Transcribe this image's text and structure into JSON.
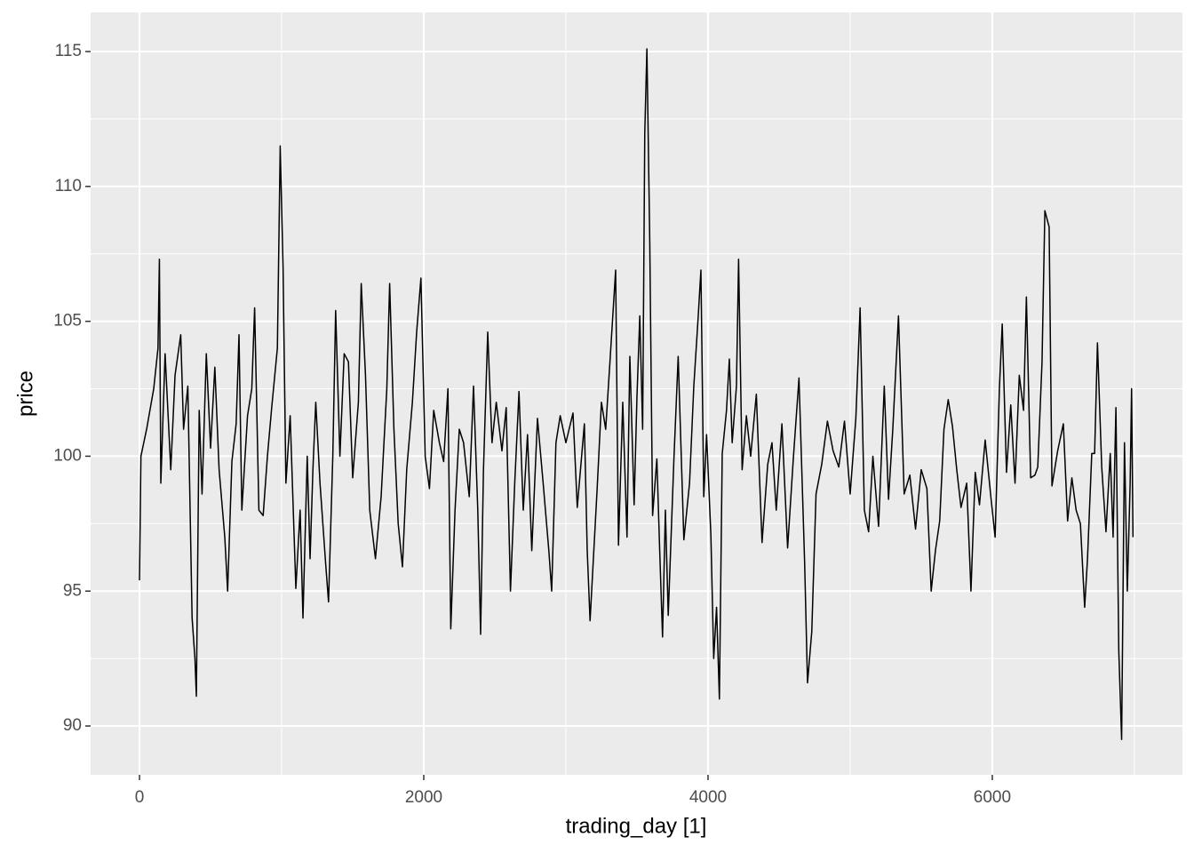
{
  "chart_data": {
    "type": "line",
    "x_label": "trading_day [1]",
    "y_label": "price",
    "xlim": [
      -344,
      7338
    ],
    "ylim": [
      88.19,
      116.45
    ],
    "xticks": [
      0,
      2000,
      4000,
      6000
    ],
    "yticks": [
      90,
      95,
      100,
      105,
      110,
      115
    ],
    "x_minor_grid": [
      1000,
      3000,
      5000,
      7000
    ],
    "y_minor_grid": [
      92.5,
      97.5,
      102.5,
      107.5,
      112.5
    ],
    "grid": true,
    "color": "#000000",
    "x": [
      0,
      10,
      50,
      100,
      130,
      140,
      150,
      180,
      220,
      250,
      290,
      310,
      340,
      370,
      390,
      400,
      420,
      440,
      470,
      500,
      530,
      560,
      600,
      620,
      650,
      680,
      700,
      720,
      760,
      790,
      810,
      840,
      870,
      900,
      930,
      970,
      990,
      1010,
      1030,
      1060,
      1100,
      1130,
      1150,
      1180,
      1200,
      1220,
      1240,
      1270,
      1310,
      1330,
      1360,
      1380,
      1410,
      1440,
      1470,
      1500,
      1540,
      1560,
      1590,
      1620,
      1660,
      1700,
      1740,
      1760,
      1790,
      1820,
      1850,
      1880,
      1920,
      1950,
      1980,
      2010,
      2040,
      2070,
      2110,
      2140,
      2170,
      2190,
      2220,
      2250,
      2280,
      2320,
      2350,
      2380,
      2400,
      2420,
      2450,
      2480,
      2510,
      2550,
      2580,
      2610,
      2640,
      2670,
      2700,
      2730,
      2760,
      2800,
      2840,
      2880,
      2900,
      2930,
      2960,
      3000,
      3050,
      3080,
      3130,
      3150,
      3170,
      3220,
      3250,
      3280,
      3310,
      3350,
      3370,
      3400,
      3430,
      3450,
      3480,
      3500,
      3520,
      3540,
      3555,
      3570,
      3590,
      3610,
      3640,
      3660,
      3680,
      3700,
      3720,
      3760,
      3790,
      3830,
      3870,
      3900,
      3930,
      3950,
      3970,
      3990,
      4020,
      4040,
      4060,
      4080,
      4100,
      4130,
      4150,
      4170,
      4200,
      4215,
      4240,
      4270,
      4300,
      4340,
      4380,
      4420,
      4450,
      4480,
      4520,
      4560,
      4600,
      4640,
      4680,
      4700,
      4730,
      4760,
      4800,
      4840,
      4880,
      4920,
      4960,
      5000,
      5040,
      5070,
      5100,
      5130,
      5160,
      5200,
      5240,
      5270,
      5300,
      5340,
      5380,
      5420,
      5460,
      5500,
      5540,
      5570,
      5600,
      5630,
      5660,
      5690,
      5720,
      5750,
      5780,
      5820,
      5850,
      5880,
      5910,
      5950,
      5990,
      6020,
      6050,
      6070,
      6100,
      6130,
      6160,
      6190,
      6220,
      6240,
      6270,
      6300,
      6320,
      6350,
      6370,
      6400,
      6420,
      6460,
      6500,
      6530,
      6560,
      6590,
      6620,
      6650,
      6670,
      6700,
      6720,
      6740,
      6770,
      6800,
      6830,
      6850,
      6870,
      6890,
      6910,
      6930,
      6950,
      6970,
      6980,
      6990
    ],
    "values": [
      95.4,
      100,
      101,
      102.5,
      104,
      107.3,
      99,
      103.8,
      99.5,
      103,
      104.5,
      101,
      102.6,
      94,
      92.5,
      91.1,
      101.7,
      98.6,
      103.8,
      100.3,
      103.3,
      99.5,
      97,
      95,
      99.8,
      101.2,
      104.5,
      98,
      101.5,
      102.5,
      105.5,
      98,
      97.8,
      100,
      101.8,
      104,
      111.5,
      107,
      99,
      101.5,
      95.1,
      98,
      94,
      100,
      96.2,
      99.5,
      102,
      99,
      96,
      94.6,
      100,
      105.4,
      100,
      103.8,
      103.5,
      99.2,
      102,
      106.4,
      103,
      98,
      96.2,
      98.5,
      102.5,
      106.4,
      101,
      97.5,
      95.9,
      99.5,
      102,
      104.6,
      106.6,
      100,
      98.8,
      101.7,
      100.5,
      99.8,
      102.5,
      93.6,
      98,
      101,
      100.5,
      98.5,
      102.6,
      98,
      93.4,
      99.5,
      104.6,
      100.5,
      102,
      100.2,
      101.8,
      95,
      99,
      102.4,
      98,
      100.8,
      96.5,
      101.4,
      99,
      96.5,
      95,
      100.5,
      101.5,
      100.5,
      101.6,
      98.1,
      101.2,
      96.5,
      93.9,
      98.8,
      102,
      101,
      103.5,
      106.9,
      96.7,
      102,
      97,
      103.7,
      98.2,
      102.2,
      105.2,
      101,
      112,
      115.1,
      108,
      97.8,
      99.9,
      96.5,
      93.3,
      98,
      94.1,
      99.9,
      103.7,
      96.9,
      99,
      102.6,
      105.1,
      106.9,
      98.5,
      100.8,
      97.1,
      92.5,
      94.4,
      91,
      100.1,
      101.7,
      103.6,
      100.5,
      102.6,
      107.3,
      99.5,
      101.5,
      100,
      102.3,
      96.8,
      99.7,
      100.5,
      98,
      101.2,
      96.6,
      99.9,
      102.9,
      96,
      91.6,
      93.5,
      98.6,
      99.7,
      101.3,
      100.2,
      99.6,
      101.3,
      98.6,
      101.4,
      105.5,
      98,
      97.2,
      100,
      97.4,
      102.6,
      98.4,
      101,
      105.2,
      98.6,
      99.3,
      97.3,
      99.5,
      98.8,
      95,
      96.5,
      97.6,
      101,
      102.1,
      101.1,
      99.5,
      98.1,
      99,
      95,
      99.4,
      98.2,
      100.6,
      98.5,
      97,
      102.5,
      104.9,
      99.4,
      101.9,
      99,
      103,
      101.7,
      105.9,
      99.2,
      99.3,
      99.6,
      103.5,
      109.1,
      108.5,
      98.9,
      100.2,
      101.2,
      97.6,
      99.2,
      98,
      97.5,
      94.4,
      96.2,
      100.1,
      100.1,
      104.2,
      99.6,
      97.2,
      100.1,
      97,
      101.8,
      92.8,
      89.5,
      100.5,
      95,
      99,
      102.5,
      97
    ]
  }
}
